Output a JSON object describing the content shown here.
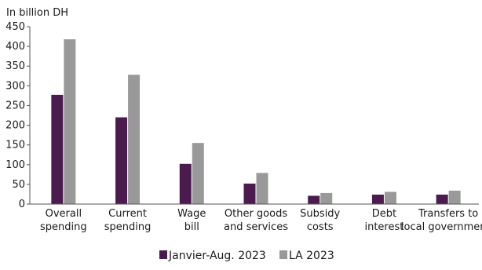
{
  "chart_data": {
    "type": "bar",
    "unit_label": "In billion DH",
    "categories": [
      [
        "Overall",
        "spending"
      ],
      [
        "Current",
        "spending"
      ],
      [
        "Wage",
        "bill"
      ],
      [
        "Other goods",
        "and services"
      ],
      [
        "Subsidy",
        "costs"
      ],
      [
        "Debt",
        "interest"
      ],
      [
        "Transfers to",
        "local governments"
      ]
    ],
    "series": [
      {
        "name": "Janvier-Aug. 2023",
        "color": "#4b1a4e",
        "values": [
          277,
          220,
          102,
          52,
          21,
          24,
          24
        ]
      },
      {
        "name": "LA 2023",
        "color": "#999999",
        "values": [
          418,
          328,
          155,
          79,
          28,
          31,
          34
        ]
      }
    ],
    "ylim": [
      0,
      450
    ],
    "yticks": [
      0,
      50,
      100,
      150,
      200,
      250,
      300,
      350,
      400,
      450
    ],
    "grid": false,
    "legend_position": "bottom-center"
  }
}
